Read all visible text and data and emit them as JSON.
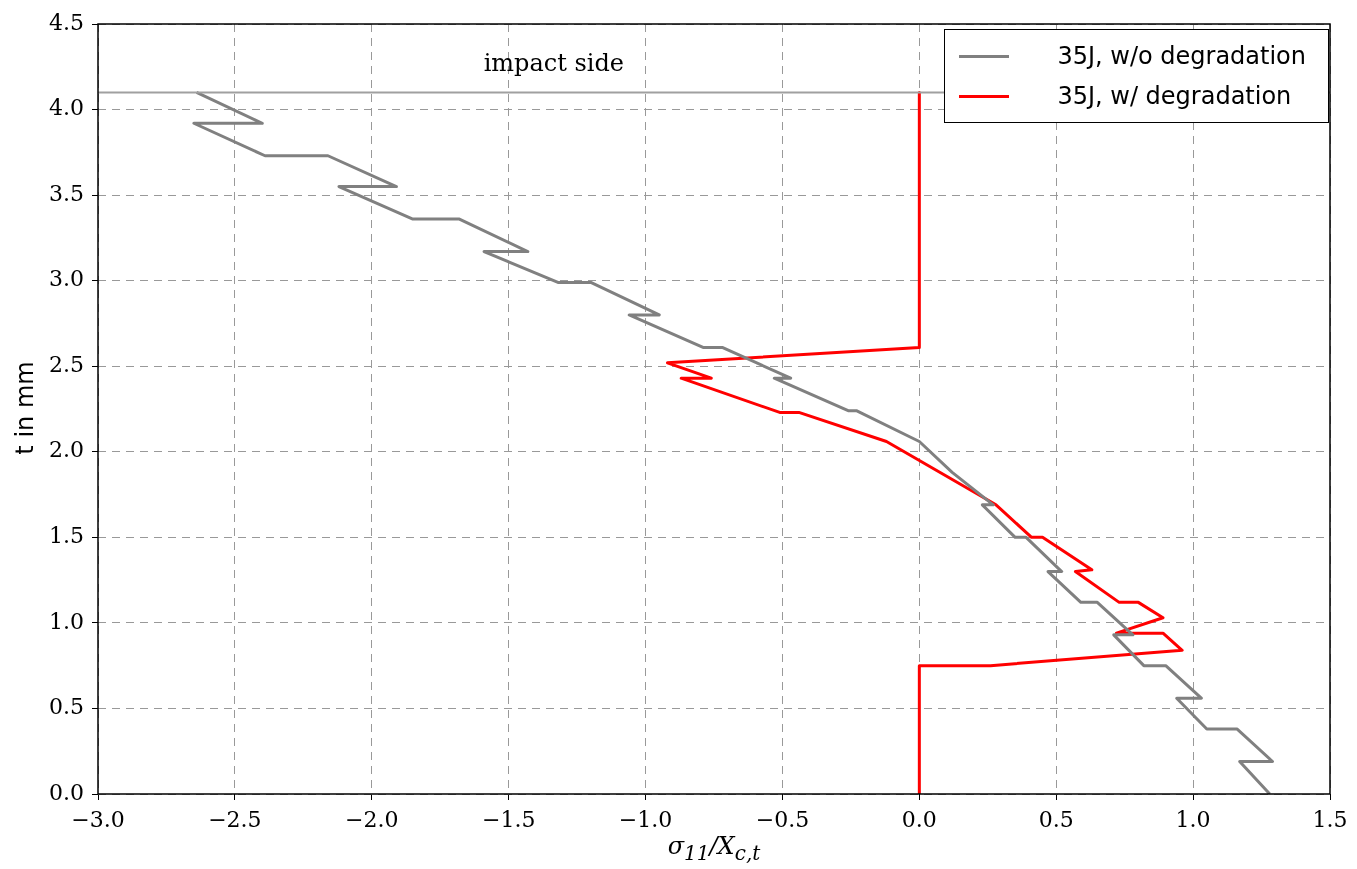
{
  "chart_data": {
    "type": "line",
    "xlabel": "σ$_{11}$/X$_{c,t}$",
    "ylabel": "t in mm",
    "xlim": [
      -3.0,
      1.5
    ],
    "ylim": [
      0.0,
      4.5
    ],
    "xticks": [
      {
        "value": -3.0,
        "label": "−3.0"
      },
      {
        "value": -2.5,
        "label": "−2.5"
      },
      {
        "value": -2.0,
        "label": "−2.0"
      },
      {
        "value": -1.5,
        "label": "−1.5"
      },
      {
        "value": -1.0,
        "label": "−1.0"
      },
      {
        "value": -0.5,
        "label": "−0.5"
      },
      {
        "value": 0.0,
        "label": "0.0"
      },
      {
        "value": 0.5,
        "label": "0.5"
      },
      {
        "value": 1.0,
        "label": "1.0"
      },
      {
        "value": 1.5,
        "label": "1.5"
      }
    ],
    "yticks": [
      {
        "value": 0.0,
        "label": "0.0"
      },
      {
        "value": 0.5,
        "label": "0.5"
      },
      {
        "value": 1.0,
        "label": "1.0"
      },
      {
        "value": 1.5,
        "label": "1.5"
      },
      {
        "value": 2.0,
        "label": "2.0"
      },
      {
        "value": 2.5,
        "label": "2.5"
      },
      {
        "value": 3.0,
        "label": "3.0"
      },
      {
        "value": 3.5,
        "label": "3.5"
      },
      {
        "value": 4.0,
        "label": "4.0"
      },
      {
        "value": 4.5,
        "label": "4.5"
      }
    ],
    "grid": true,
    "legend": "top right",
    "line_style": "solid",
    "marker": "none",
    "series": [
      {
        "name": "35J, w/o degradation",
        "color": "#808080",
        "x": [
          -2.64,
          -2.4,
          -2.65,
          -2.39,
          -2.16,
          -1.91,
          -2.12,
          -1.85,
          -1.68,
          -1.43,
          -1.59,
          -1.32,
          -1.2,
          -0.95,
          -1.06,
          -0.79,
          -0.72,
          -0.47,
          -0.53,
          -0.26,
          -0.23,
          0.0,
          0.12,
          0.27,
          0.23,
          0.35,
          0.39,
          0.52,
          0.47,
          0.59,
          0.65,
          0.78,
          0.71,
          0.82,
          0.9,
          1.03,
          0.94,
          1.05,
          1.16,
          1.29,
          1.17,
          1.28
        ],
        "values": [
          4.1,
          3.92,
          3.92,
          3.73,
          3.73,
          3.55,
          3.55,
          3.36,
          3.36,
          3.17,
          3.17,
          2.99,
          2.99,
          2.8,
          2.8,
          2.61,
          2.61,
          2.43,
          2.43,
          2.24,
          2.24,
          2.06,
          1.88,
          1.69,
          1.69,
          1.5,
          1.5,
          1.3,
          1.3,
          1.12,
          1.12,
          0.93,
          0.93,
          0.75,
          0.75,
          0.56,
          0.56,
          0.38,
          0.38,
          0.19,
          0.19,
          0.0
        ]
      },
      {
        "name": "35J, w/ degradation",
        "color": "#ff0000",
        "x": [
          0.0,
          0.0,
          -0.92,
          -0.76,
          -0.87,
          -0.51,
          -0.44,
          -0.12,
          0.28,
          0.41,
          0.45,
          0.63,
          0.57,
          0.73,
          0.8,
          0.89,
          0.72,
          0.89,
          0.96,
          0.26,
          0.0,
          0.0
        ],
        "values": [
          4.1,
          2.61,
          2.52,
          2.43,
          2.43,
          2.23,
          2.23,
          2.06,
          1.69,
          1.5,
          1.5,
          1.31,
          1.3,
          1.12,
          1.12,
          1.03,
          0.94,
          0.94,
          0.84,
          0.75,
          0.75,
          0.0
        ]
      }
    ],
    "ref_lines": [
      {
        "axis": "y",
        "value": 4.1,
        "label": "impact side",
        "color": "#a0a0a0",
        "line_style": "solid"
      }
    ]
  }
}
